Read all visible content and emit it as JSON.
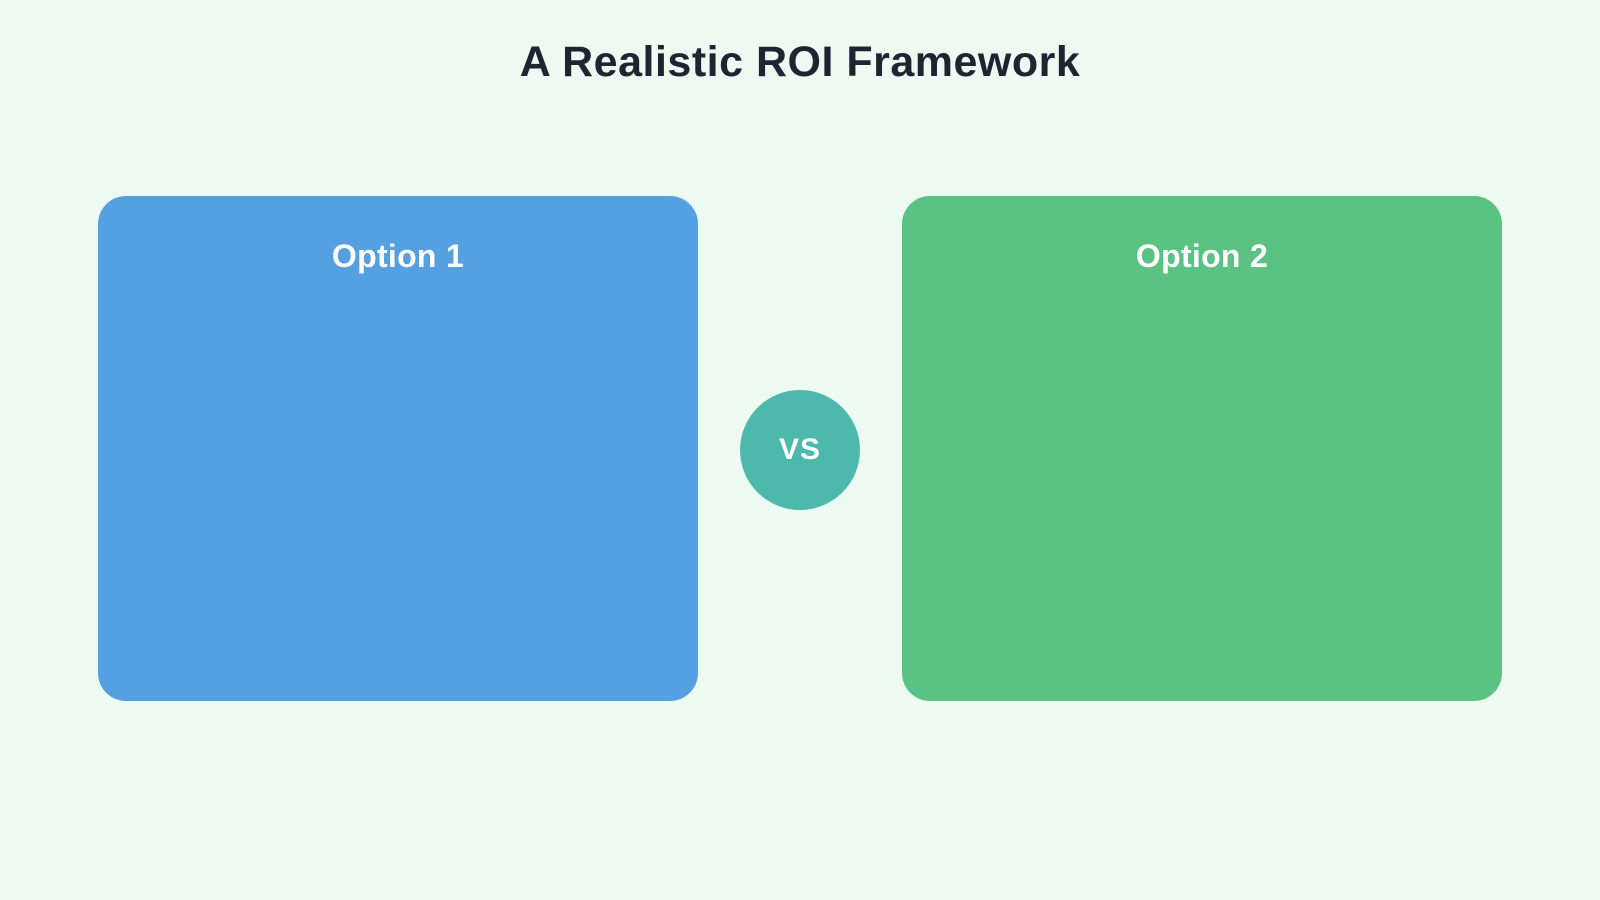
{
  "page": {
    "title": "A Realistic ROI Framework",
    "colors": {
      "background": "#edfaf2",
      "title_text": "#1b2631"
    }
  },
  "comparison": {
    "cards": [
      {
        "label": "Option 1",
        "color": "#54a0e0",
        "text_color": "#ffffff"
      },
      {
        "label": "Option 2",
        "color": "#5ac282",
        "text_color": "#ffffff"
      }
    ],
    "vs_badge": {
      "label": "VS",
      "color": "#4cb9ac",
      "text_color": "#ffffff"
    }
  }
}
